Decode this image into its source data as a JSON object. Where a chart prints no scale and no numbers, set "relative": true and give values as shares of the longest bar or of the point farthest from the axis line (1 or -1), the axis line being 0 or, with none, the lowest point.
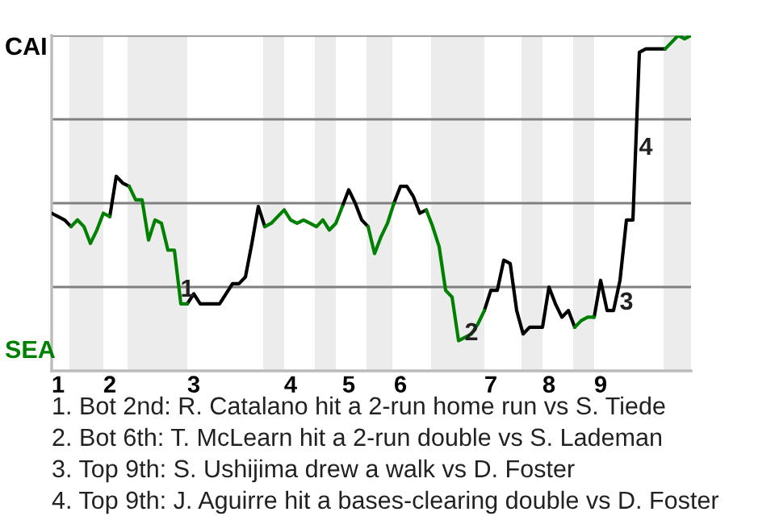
{
  "chart_data": {
    "type": "line",
    "relative": true,
    "categories": [
      null,
      "1",
      null,
      null,
      null,
      null,
      null,
      null,
      null,
      "2",
      null,
      null,
      null,
      null,
      null,
      null,
      null,
      null,
      null,
      null,
      null,
      null,
      "3",
      null,
      null,
      null,
      null,
      null,
      null,
      null,
      null,
      null,
      null,
      null,
      null,
      null,
      null,
      "4",
      null,
      null,
      null,
      null,
      null,
      null,
      null,
      null,
      "5",
      null,
      null,
      null,
      null,
      null,
      null,
      null,
      "6",
      null,
      null,
      null,
      null,
      null,
      null,
      null,
      null,
      null,
      null,
      null,
      null,
      null,
      "7",
      null,
      null,
      null,
      null,
      null,
      null,
      null,
      null,
      "8",
      null,
      null,
      null,
      null,
      null,
      null,
      null,
      "9",
      null,
      null,
      null,
      null,
      null,
      null,
      null,
      null,
      null,
      null,
      null,
      null,
      null,
      null
    ],
    "marker": "none",
    "line_style": "solid",
    "ref_lines": [
      {
        "axis": "y",
        "value": 0.25,
        "color": "#808080"
      },
      {
        "axis": "y",
        "value": 0.5,
        "color": "#808080"
      },
      {
        "axis": "y",
        "value": 0.75,
        "color": "#808080"
      },
      {
        "axis": "y",
        "value": 1,
        "color": "#808080"
      }
    ],
    "series": [
      {
        "color": "#000000",
        "values": [
          0.47,
          0.46,
          0.45,
          0.43,
          null,
          null,
          null,
          null,
          null,
          0.46,
          0.58,
          0.56,
          0.55,
          null,
          null,
          null,
          null,
          null,
          null,
          null,
          null,
          0.2,
          0.23,
          0.2,
          0.2,
          0.2,
          0.2,
          0.23,
          0.26,
          0.26,
          0.28,
          0.38,
          0.49,
          0.43,
          null,
          null,
          null,
          null,
          null,
          null,
          null,
          null,
          null,
          null,
          null,
          0.49,
          0.54,
          0.5,
          0.45,
          0.43,
          null,
          null,
          null,
          0.5,
          0.55,
          0.55,
          0.52,
          0.47,
          0.48,
          null,
          null,
          null,
          null,
          null,
          null,
          null,
          null,
          0.18,
          0.24,
          0.24,
          0.33,
          0.32,
          0.18,
          0.11,
          0.13,
          0.13,
          0.13,
          0.25,
          0.2,
          0.16,
          0.18,
          0.13,
          null,
          null,
          0.16,
          0.27,
          0.18,
          0.18,
          0.27,
          0.45,
          0.45,
          0.95,
          0.96,
          0.96,
          0.96,
          0.96,
          null,
          null,
          null,
          null
        ]
      },
      {
        "color": "#008000",
        "values": [
          null,
          null,
          null,
          0.43,
          0.45,
          0.43,
          0.38,
          0.42,
          0.47,
          0.46,
          null,
          null,
          0.55,
          0.51,
          0.51,
          0.39,
          0.45,
          0.44,
          0.36,
          0.36,
          0.2,
          0.2,
          null,
          null,
          null,
          null,
          null,
          null,
          null,
          null,
          null,
          null,
          null,
          0.43,
          0.44,
          0.46,
          0.48,
          0.45,
          0.44,
          0.45,
          0.44,
          0.43,
          0.45,
          0.42,
          0.44,
          0.49,
          null,
          null,
          null,
          0.43,
          0.35,
          0.4,
          0.44,
          0.5,
          null,
          null,
          null,
          null,
          0.48,
          0.43,
          0.37,
          0.24,
          0.22,
          0.09,
          0.1,
          0.11,
          0.14,
          0.18,
          null,
          null,
          null,
          null,
          null,
          null,
          null,
          null,
          null,
          null,
          null,
          null,
          null,
          0.13,
          0.15,
          0.16,
          0.16,
          null,
          null,
          null,
          null,
          null,
          null,
          null,
          null,
          null,
          null,
          0.96,
          0.98,
          1,
          0.99,
          1
        ]
      }
    ],
    "annotations": [
      "CAI",
      "SEA",
      "1",
      "2",
      "3",
      "4",
      "1. Bot 2nd: R. Catalano hit a 2-run home run vs S. Tiede",
      "2. Bot 6th: T. McLearn hit a 2-run double vs S. Lademan",
      "3. Top 9th: S. Ushijima drew a walk vs D. Foster",
      "4. Top 9th: J. Aguirre hit a bases-clearing double vs D. Foster"
    ]
  }
}
